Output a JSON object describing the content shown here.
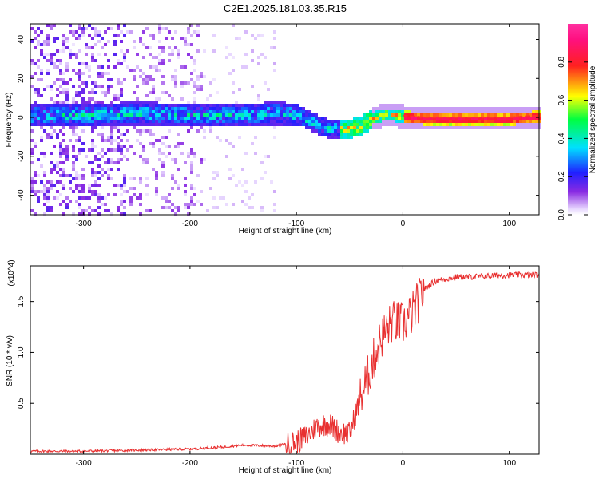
{
  "figure_title": "C2E1.2025.181.03.35.R15",
  "chart_data": [
    {
      "type": "heatmap",
      "title": "C2E1.2025.181.03.35.R15",
      "xlabel": "Height of straight line (km)",
      "ylabel": "Frequency (Hz)",
      "xlim": [
        -350,
        128
      ],
      "ylim": [
        -50,
        48
      ],
      "xticks": [
        -300,
        -200,
        -100,
        0,
        100
      ],
      "yticks": [
        -40,
        -20,
        0,
        20,
        40
      ],
      "colorbar": {
        "label": "Normalized spectral amplitude",
        "range": [
          0,
          1
        ],
        "ticks": [
          0.0,
          0.2,
          0.4,
          0.6,
          0.8
        ]
      },
      "ridge": {
        "x": [
          -350,
          -300,
          -250,
          -200,
          -150,
          -120,
          -100,
          -85,
          -70,
          -60,
          -50,
          -40,
          -30,
          -20,
          -10,
          0,
          20,
          50,
          100,
          128
        ],
        "y": [
          2,
          2,
          3,
          2,
          2,
          3,
          2,
          -2,
          -5,
          -5,
          -5,
          -3,
          0,
          2,
          2,
          1,
          0,
          0,
          0,
          1
        ]
      },
      "legend": "none",
      "grid": false
    },
    {
      "type": "line",
      "xlabel": "Height of straight line (km)",
      "ylabel": "SNR (10 * v/v)",
      "y_multiplier": "(x10^4)",
      "xlim": [
        -350,
        128
      ],
      "ylim": [
        0,
        1.85
      ],
      "xticks": [
        -300,
        -200,
        -100,
        0,
        100
      ],
      "yticks": [
        0.5,
        1.0,
        1.5
      ],
      "series": [
        {
          "color": "#e83030",
          "x": [
            -350,
            -300,
            -250,
            -200,
            -170,
            -150,
            -120,
            -100,
            -90,
            -80,
            -70,
            -60,
            -50,
            -40,
            -30,
            -20,
            -10,
            0,
            10,
            20,
            30,
            40,
            50,
            60,
            80,
            100,
            128
          ],
          "y": [
            0.03,
            0.03,
            0.04,
            0.05,
            0.07,
            0.09,
            0.08,
            0.12,
            0.18,
            0.28,
            0.3,
            0.22,
            0.2,
            0.55,
            0.85,
            1.15,
            1.3,
            1.28,
            1.4,
            1.62,
            1.7,
            1.72,
            1.74,
            1.74,
            1.75,
            1.76,
            1.76
          ]
        }
      ],
      "legend": "none",
      "grid": false
    }
  ]
}
